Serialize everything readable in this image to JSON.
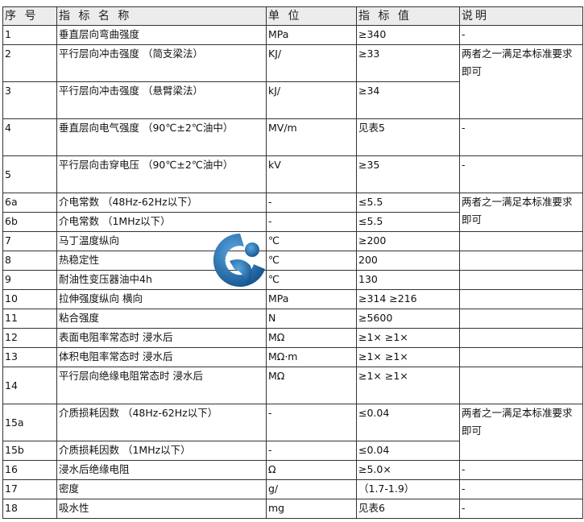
{
  "headers": [
    "序 号",
    "指 标 名 称",
    "单 位",
    "指 标 值",
    "说明"
  ],
  "rows": [
    {
      "no": "1",
      "name": "垂直层向弯曲强度",
      "unit": "MPa",
      "value": "≥340",
      "note": "-",
      "h": 1
    },
    {
      "no": "2",
      "name": "平行层向冲击强度 （简支梁法）",
      "unit": "KJ/",
      "value": "≥33",
      "note": "两者之一满足本标准要求即可",
      "noteSpan": 2,
      "h": 2
    },
    {
      "no": "3",
      "name": "平行层向冲击强度 （悬臂梁法）",
      "unit": "kJ/",
      "value": "≥34",
      "h": 2
    },
    {
      "no": "4",
      "name": "垂直层向电气强度 （90℃±2℃油中）",
      "unit": "MV/m",
      "value": "见表5",
      "note": "-",
      "h": 2
    },
    {
      "no": "5",
      "name": "平行层向击穿电压 （90℃±2℃油中）",
      "unit": "kV",
      "value": "≥35",
      "note": "-",
      "h": 2,
      "noMid": true
    },
    {
      "no": "6a",
      "name": "介电常数 （48Hz-62Hz以下）",
      "unit": "-",
      "value": "≤5.5",
      "note": "两者之一满足本标准要求即可",
      "noteSpan": 2,
      "h": 1
    },
    {
      "no": "6b",
      "name": "介电常数 （1MHz以下）",
      "unit": "-",
      "value": "≤5.5",
      "h": 1
    },
    {
      "no": "7",
      "name": "马丁温度纵向",
      "unit": "℃",
      "value": "≥200",
      "note": "",
      "h": 1
    },
    {
      "no": "8",
      "name": "热稳定性",
      "unit": "℃",
      "value": "200",
      "note": "",
      "h": 1
    },
    {
      "no": "9",
      "name": "耐油性变压器油中4h",
      "unit": "℃",
      "value": "130",
      "note": "",
      "h": 1
    },
    {
      "no": "10",
      "name": "拉伸强度纵向 横向",
      "unit": "MPa",
      "value": "≥314 ≥216",
      "note": "",
      "h": 1
    },
    {
      "no": "11",
      "name": "粘合强度",
      "unit": "N",
      "value": "≥5600",
      "note": "",
      "h": 1
    },
    {
      "no": "12",
      "name": "表面电阻率常态时 浸水后",
      "unit": "MΩ",
      "value": "≥1× ≥1×",
      "note": "",
      "h": 1
    },
    {
      "no": "13",
      "name": "体积电阻率常态时 浸水后",
      "unit": "MΩ·m",
      "value": "≥1× ≥1×",
      "note": "",
      "h": 1
    },
    {
      "no": "14",
      "name": "平行层向绝缘电阻常态时 浸水后",
      "unit": "MΩ",
      "value": "≥1× ≥1×",
      "note": "",
      "h": 2
    },
    {
      "no": "15a",
      "name": "介质损耗因数 （48Hz-62Hz以下）",
      "unit": "-",
      "value": "≤0.04",
      "note": "两者之一满足本标准要求即可",
      "noteSpan": 2,
      "h": 2
    },
    {
      "no": "15b",
      "name": "介质损耗因数 （1MHz以下）",
      "unit": "-",
      "value": "≤0.04",
      "h": 1
    },
    {
      "no": "16",
      "name": "浸水后绝缘电阻",
      "unit": "Ω",
      "value": "≥5.0×",
      "note": "-",
      "h": 1
    },
    {
      "no": "17",
      "name": "密度",
      "unit": "g/",
      "value": "（1.7-1.9）",
      "note": "-",
      "h": 1
    },
    {
      "no": "18",
      "name": "吸水性",
      "unit": "mg",
      "value": "见表6",
      "note": "-",
      "h": 1
    }
  ],
  "colors": {
    "border": "#333333",
    "header_bg": "#ececec",
    "logo_blue": "#1f6fb0"
  }
}
